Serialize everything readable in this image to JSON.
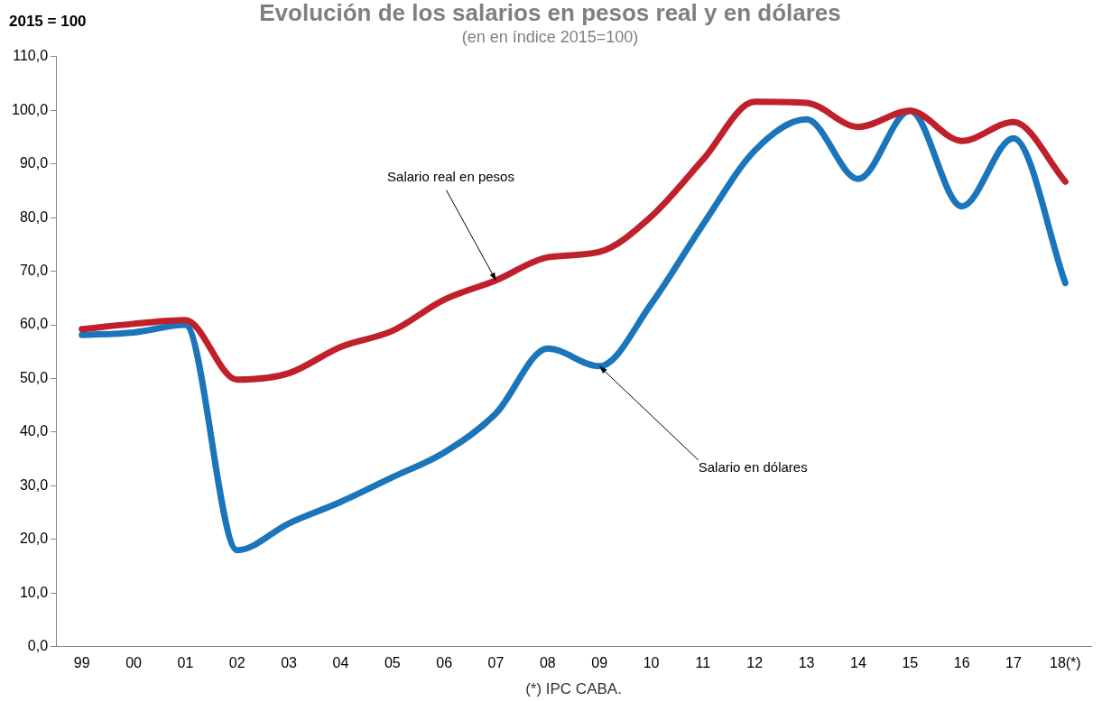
{
  "chart_data": {
    "type": "line",
    "title": "Evolución de los salarios en pesos real y en dólares",
    "subtitle": "(en en índice 2015=100)",
    "ylabel": "2015 = 100",
    "categories": [
      "99",
      "00",
      "01",
      "02",
      "03",
      "04",
      "05",
      "06",
      "07",
      "08",
      "09",
      "10",
      "11",
      "12",
      "13",
      "14",
      "15",
      "16",
      "17",
      "18(*)"
    ],
    "series": [
      {
        "color": "#c0202a",
        "values": [
          59.2,
          60.2,
          60.9,
          49.8,
          51.0,
          55.9,
          58.9,
          64.7,
          68.3,
          72.6,
          73.6,
          80.2,
          90.8,
          101.6,
          101.4,
          96.9,
          99.9,
          94.3,
          97.8,
          86.7
        ]
      },
      {
        "color": "#1a75bb",
        "values": [
          58.1,
          58.6,
          60.0,
          18.0,
          23.0,
          27.0,
          31.6,
          36.2,
          43.5,
          55.6,
          52.3,
          63.9,
          78.7,
          92.5,
          98.3,
          87.2,
          99.9,
          82.1,
          94.8,
          67.8
        ]
      }
    ],
    "ylim": [
      0,
      110
    ],
    "yticks": [
      {
        "value": 0,
        "label": "0,0"
      },
      {
        "value": 10,
        "label": "10,0"
      },
      {
        "value": 20,
        "label": "20,0"
      },
      {
        "value": 30,
        "label": "30,0"
      },
      {
        "value": 40,
        "label": "40,0"
      },
      {
        "value": 50,
        "label": "50,0"
      },
      {
        "value": 60,
        "label": "60,0"
      },
      {
        "value": 70,
        "label": "70,0"
      },
      {
        "value": 80,
        "label": "80,0"
      },
      {
        "value": 90,
        "label": "90,0"
      },
      {
        "value": 100,
        "label": "100,0"
      },
      {
        "value": 110,
        "label": "110,0"
      }
    ],
    "grid": false,
    "legend": false,
    "marker": "none",
    "line_style": "solid",
    "annotations": [
      {
        "text": "Salario real en pesos",
        "x": "07",
        "y": 68.3
      },
      {
        "text": "Salario en dólares",
        "x": "09",
        "y": 52.3
      },
      "(*) IPC CABA."
    ]
  }
}
